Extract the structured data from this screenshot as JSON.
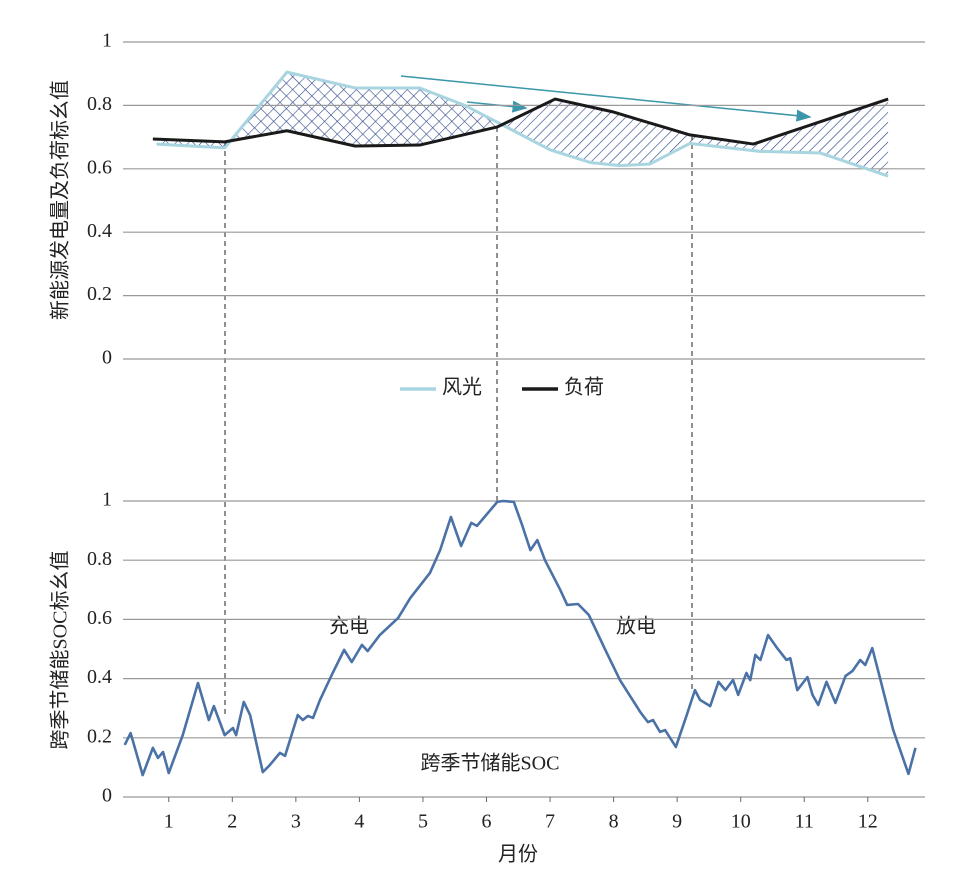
{
  "chart_data": [
    {
      "type": "line",
      "ylabel": "新能源发电量及负荷标幺值",
      "xlim": [
        0.28,
        12.9
      ],
      "ylim": [
        0,
        1
      ],
      "yticks": [
        0,
        0.2,
        0.4,
        0.6,
        0.8,
        1
      ],
      "grid": true,
      "series": [
        {
          "name": "风光",
          "color": "#a8d5e0",
          "x": [
            0.81,
            1.88,
            2.86,
            3.93,
            4.95,
            5.66,
            6.37,
            7.0,
            7.63,
            8.1,
            8.57,
            9.2,
            10.3,
            11.25,
            12.32
          ],
          "values": [
            0.678,
            0.666,
            0.905,
            0.855,
            0.855,
            0.8,
            0.726,
            0.66,
            0.62,
            0.61,
            0.615,
            0.68,
            0.655,
            0.65,
            0.577
          ]
        },
        {
          "name": "负荷",
          "color": "#1a1a1a",
          "x": [
            0.75,
            1.88,
            2.86,
            3.93,
            4.95,
            6.17,
            7.08,
            7.98,
            9.2,
            10.2,
            12.32
          ],
          "values": [
            0.694,
            0.685,
            0.72,
            0.672,
            0.675,
            0.732,
            0.82,
            0.78,
            0.707,
            0.678,
            0.82
          ]
        }
      ]
    },
    {
      "type": "line",
      "ylabel": "跨季节储能SOC标幺值",
      "xlabel": "月份",
      "xlim": [
        0.28,
        12.9
      ],
      "xticks": [
        1,
        2,
        3,
        4,
        5,
        6,
        7,
        8,
        9,
        10,
        11,
        12
      ],
      "ylim": [
        0,
        1
      ],
      "yticks": [
        0,
        0.2,
        0.4,
        0.6,
        0.8,
        1
      ],
      "grid": true,
      "annotations": [
        "充电",
        "放电"
      ],
      "series": [
        {
          "name": "跨季节储能SOC",
          "color": "#4a72a6",
          "x": [
            0.307,
            0.4,
            0.59,
            0.75,
            0.83,
            0.91,
            1.0,
            1.22,
            1.46,
            1.63,
            1.71,
            1.88,
            2.01,
            2.06,
            2.18,
            2.28,
            2.48,
            2.59,
            2.75,
            2.83,
            3.03,
            3.11,
            3.19,
            3.27,
            3.38,
            3.58,
            3.76,
            3.88,
            4.04,
            4.13,
            4.32,
            4.61,
            4.8,
            5.11,
            5.27,
            5.44,
            5.6,
            5.76,
            5.85,
            6.17,
            6.26,
            6.43,
            6.56,
            6.69,
            6.8,
            6.92,
            7.16,
            7.27,
            7.44,
            7.61,
            7.87,
            8.1,
            8.42,
            8.54,
            8.62,
            8.73,
            8.81,
            8.98,
            9.14,
            9.28,
            9.36,
            9.52,
            9.65,
            9.76,
            9.88,
            9.96,
            10.09,
            10.15,
            10.23,
            10.31,
            10.43,
            10.56,
            10.72,
            10.78,
            10.89,
            11.05,
            11.13,
            11.22,
            11.35,
            11.49,
            11.65,
            11.76,
            11.88,
            11.96,
            12.07,
            12.2,
            12.4,
            12.64,
            12.75
          ],
          "values": [
            0.176,
            0.216,
            0.074,
            0.166,
            0.132,
            0.152,
            0.081,
            0.209,
            0.385,
            0.26,
            0.307,
            0.209,
            0.233,
            0.209,
            0.321,
            0.277,
            0.084,
            0.108,
            0.149,
            0.139,
            0.277,
            0.26,
            0.274,
            0.267,
            0.328,
            0.419,
            0.497,
            0.456,
            0.514,
            0.493,
            0.547,
            0.605,
            0.672,
            0.757,
            0.834,
            0.946,
            0.848,
            0.926,
            0.916,
            0.997,
            1.0,
            0.997,
            0.919,
            0.834,
            0.868,
            0.8,
            0.7,
            0.649,
            0.652,
            0.615,
            0.497,
            0.395,
            0.287,
            0.253,
            0.26,
            0.22,
            0.226,
            0.169,
            0.27,
            0.361,
            0.328,
            0.307,
            0.389,
            0.361,
            0.395,
            0.345,
            0.419,
            0.395,
            0.48,
            0.463,
            0.547,
            0.507,
            0.463,
            0.469,
            0.361,
            0.405,
            0.345,
            0.311,
            0.389,
            0.318,
            0.409,
            0.426,
            0.463,
            0.446,
            0.503,
            0.395,
            0.226,
            0.078,
            0.166
          ]
        }
      ]
    }
  ]
}
